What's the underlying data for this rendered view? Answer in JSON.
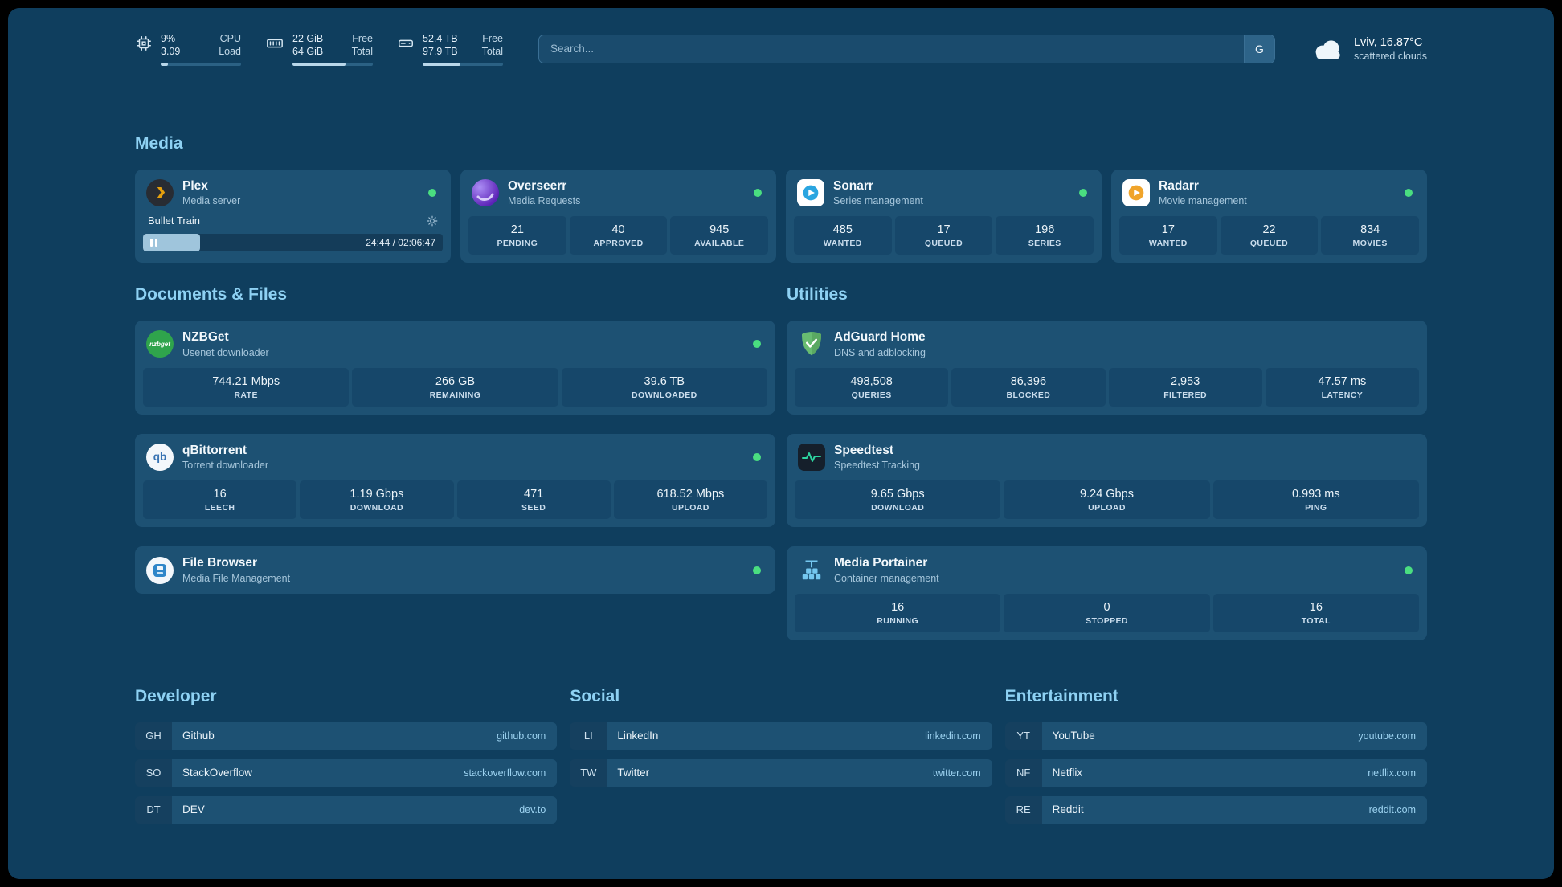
{
  "topbar": {
    "metrics": [
      {
        "row1_value": "9%",
        "row1_label": "CPU",
        "row2_value": "3.09",
        "row2_label": "Load",
        "progress": 9
      },
      {
        "row1_value": "22 GiB",
        "row1_label": "Free",
        "row2_value": "64 GiB",
        "row2_label": "Total",
        "progress": 66
      },
      {
        "row1_value": "52.4 TB",
        "row1_label": "Free",
        "row2_value": "97.9 TB",
        "row2_label": "Total",
        "progress": 47
      }
    ],
    "search": {
      "placeholder": "Search...",
      "provider_label": "G"
    },
    "weather": {
      "location": "Lviv, 16.87°C",
      "condition": "scattered clouds"
    }
  },
  "sections": {
    "media": {
      "heading": "Media",
      "cards": [
        {
          "title": "Plex",
          "subtitle": "Media server",
          "online": true,
          "now_playing": {
            "title": "Bullet Train",
            "time": "24:44 / 02:06:47",
            "progress": 19
          }
        },
        {
          "title": "Overseerr",
          "subtitle": "Media Requests",
          "online": true,
          "stats": [
            {
              "value": "21",
              "label": "PENDING"
            },
            {
              "value": "40",
              "label": "APPROVED"
            },
            {
              "value": "945",
              "label": "AVAILABLE"
            }
          ]
        },
        {
          "title": "Sonarr",
          "subtitle": "Series management",
          "online": true,
          "stats": [
            {
              "value": "485",
              "label": "WANTED"
            },
            {
              "value": "17",
              "label": "QUEUED"
            },
            {
              "value": "196",
              "label": "SERIES"
            }
          ]
        },
        {
          "title": "Radarr",
          "subtitle": "Movie management",
          "online": true,
          "stats": [
            {
              "value": "17",
              "label": "WANTED"
            },
            {
              "value": "22",
              "label": "QUEUED"
            },
            {
              "value": "834",
              "label": "MOVIES"
            }
          ]
        }
      ]
    },
    "documents": {
      "heading": "Documents & Files",
      "cards": [
        {
          "title": "NZBGet",
          "subtitle": "Usenet downloader",
          "online": true,
          "stats": [
            {
              "value": "744.21 Mbps",
              "label": "RATE"
            },
            {
              "value": "266 GB",
              "label": "REMAINING"
            },
            {
              "value": "39.6 TB",
              "label": "DOWNLOADED"
            }
          ]
        },
        {
          "title": "qBittorrent",
          "subtitle": "Torrent downloader",
          "online": true,
          "stats": [
            {
              "value": "16",
              "label": "LEECH"
            },
            {
              "value": "1.19 Gbps",
              "label": "DOWNLOAD"
            },
            {
              "value": "471",
              "label": "SEED"
            },
            {
              "value": "618.52 Mbps",
              "label": "UPLOAD"
            }
          ]
        },
        {
          "title": "File Browser",
          "subtitle": "Media File Management",
          "online": true,
          "stats": []
        }
      ]
    },
    "utilities": {
      "heading": "Utilities",
      "cards": [
        {
          "title": "AdGuard Home",
          "subtitle": "DNS and adblocking",
          "online": false,
          "stats": [
            {
              "value": "498,508",
              "label": "QUERIES"
            },
            {
              "value": "86,396",
              "label": "BLOCKED"
            },
            {
              "value": "2,953",
              "label": "FILTERED"
            },
            {
              "value": "47.57 ms",
              "label": "LATENCY"
            }
          ]
        },
        {
          "title": "Speedtest",
          "subtitle": "Speedtest Tracking",
          "online": false,
          "stats": [
            {
              "value": "9.65 Gbps",
              "label": "DOWNLOAD"
            },
            {
              "value": "9.24 Gbps",
              "label": "UPLOAD"
            },
            {
              "value": "0.993 ms",
              "label": "PING"
            }
          ]
        },
        {
          "title": "Media Portainer",
          "subtitle": "Container management",
          "online": true,
          "stats": [
            {
              "value": "16",
              "label": "RUNNING"
            },
            {
              "value": "0",
              "label": "STOPPED"
            },
            {
              "value": "16",
              "label": "TOTAL"
            }
          ]
        }
      ]
    },
    "bookmarks": [
      {
        "heading": "Developer",
        "items": [
          {
            "abbr": "GH",
            "name": "Github",
            "domain": "github.com"
          },
          {
            "abbr": "SO",
            "name": "StackOverflow",
            "domain": "stackoverflow.com"
          },
          {
            "abbr": "DT",
            "name": "DEV",
            "domain": "dev.to"
          }
        ]
      },
      {
        "heading": "Social",
        "items": [
          {
            "abbr": "LI",
            "name": "LinkedIn",
            "domain": "linkedin.com"
          },
          {
            "abbr": "TW",
            "name": "Twitter",
            "domain": "twitter.com"
          }
        ]
      },
      {
        "heading": "Entertainment",
        "items": [
          {
            "abbr": "YT",
            "name": "YouTube",
            "domain": "youtube.com"
          },
          {
            "abbr": "NF",
            "name": "Netflix",
            "domain": "netflix.com"
          },
          {
            "abbr": "RE",
            "name": "Reddit",
            "domain": "reddit.com"
          }
        ]
      }
    ]
  },
  "icons": {
    "nzbget_label": "nzbget",
    "qbittorrent_label": "qb"
  },
  "colors": {
    "online": "#4ade80",
    "accent": "#8ed1f3",
    "background": "#0f3e5e"
  }
}
